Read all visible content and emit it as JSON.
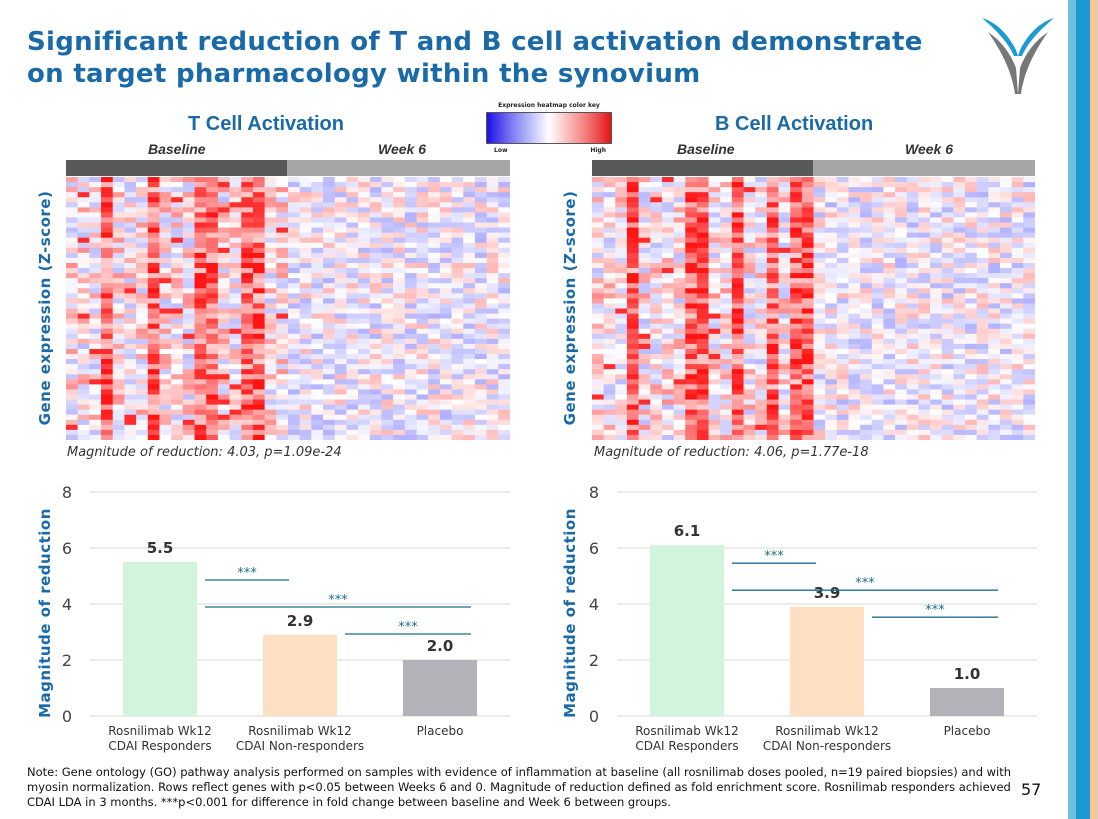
{
  "title": "Significant reduction of T and B cell activation demonstrate on target pharmacology within the synovium",
  "colors": {
    "title_blue": "#1a6aa8",
    "responders": "#d2f4dc",
    "non_responders": "#fde0c4",
    "placebo": "#b2b2b8",
    "baseline_bar": "#595959",
    "week6_bar": "#a6a6a6"
  },
  "color_key": {
    "title": "Expression heatmap color key",
    "low": "Low",
    "high": "High"
  },
  "panels": [
    {
      "title": "T Cell Activation",
      "groups": [
        "Baseline",
        "Week 6"
      ],
      "heatmap_ylabel": "Gene expression (Z-score)",
      "magnitude_text": "Magnitude of reduction: 4.03, p=1.09e-24",
      "bar_ylabel": "Magnitude of reduction"
    },
    {
      "title": "B Cell Activation",
      "groups": [
        "Baseline",
        "Week 6"
      ],
      "heatmap_ylabel": "Gene expression (Z-score)",
      "magnitude_text": "Magnitude of reduction: 4.06, p=1.77e-18",
      "bar_ylabel": "Magnitude of reduction"
    }
  ],
  "chart_data": [
    {
      "type": "bar",
      "title": "T Cell Activation",
      "ylabel": "Magnitude of reduction",
      "ylim": [
        0,
        8
      ],
      "yticks": [
        0,
        2,
        4,
        6,
        8
      ],
      "grid": true,
      "categories": [
        [
          "Rosnilimab Wk12",
          "CDAI Responders"
        ],
        [
          "Rosnilimab Wk12",
          "CDAI Non-responders"
        ],
        [
          "Placebo"
        ]
      ],
      "values": [
        5.5,
        2.9,
        2.0
      ],
      "value_labels": [
        "5.5",
        "2.9",
        "2.0"
      ],
      "significance": [
        {
          "from": 0,
          "to": 1,
          "label": "***"
        },
        {
          "from": 0,
          "to": 2,
          "label": "***"
        },
        {
          "from": 1,
          "to": 2,
          "label": "***"
        }
      ]
    },
    {
      "type": "bar",
      "title": "B Cell Activation",
      "ylabel": "Magnitude of reduction",
      "ylim": [
        0,
        8
      ],
      "yticks": [
        0,
        2,
        4,
        6,
        8
      ],
      "grid": true,
      "categories": [
        [
          "Rosnilimab Wk12",
          "CDAI Responders"
        ],
        [
          "Rosnilimab Wk12",
          "CDAI Non-responders"
        ],
        [
          "Placebo"
        ]
      ],
      "values": [
        6.1,
        3.9,
        1.0
      ],
      "value_labels": [
        "6.1",
        "3.9",
        "1.0"
      ],
      "significance": [
        {
          "from": 0,
          "to": 1,
          "label": "***"
        },
        {
          "from": 0,
          "to": 2,
          "label": "***"
        },
        {
          "from": 1,
          "to": 2,
          "label": "***"
        }
      ]
    }
  ],
  "note": "Note: Gene ontology (GO) pathway analysis performed on samples with evidence of inflammation at baseline (all rosnilimab doses pooled, n=19 paired biopsies) and with myosin normalization. Rows reflect genes with p<0.05 between Weeks 6 and 0.  Magnitude of reduction defined as fold enrichment score. Rosnilimab responders achieved CDAI LDA in 3 months. ***p<0.001 for difference in fold change between baseline and Week 6 between groups.",
  "page_number": "57"
}
